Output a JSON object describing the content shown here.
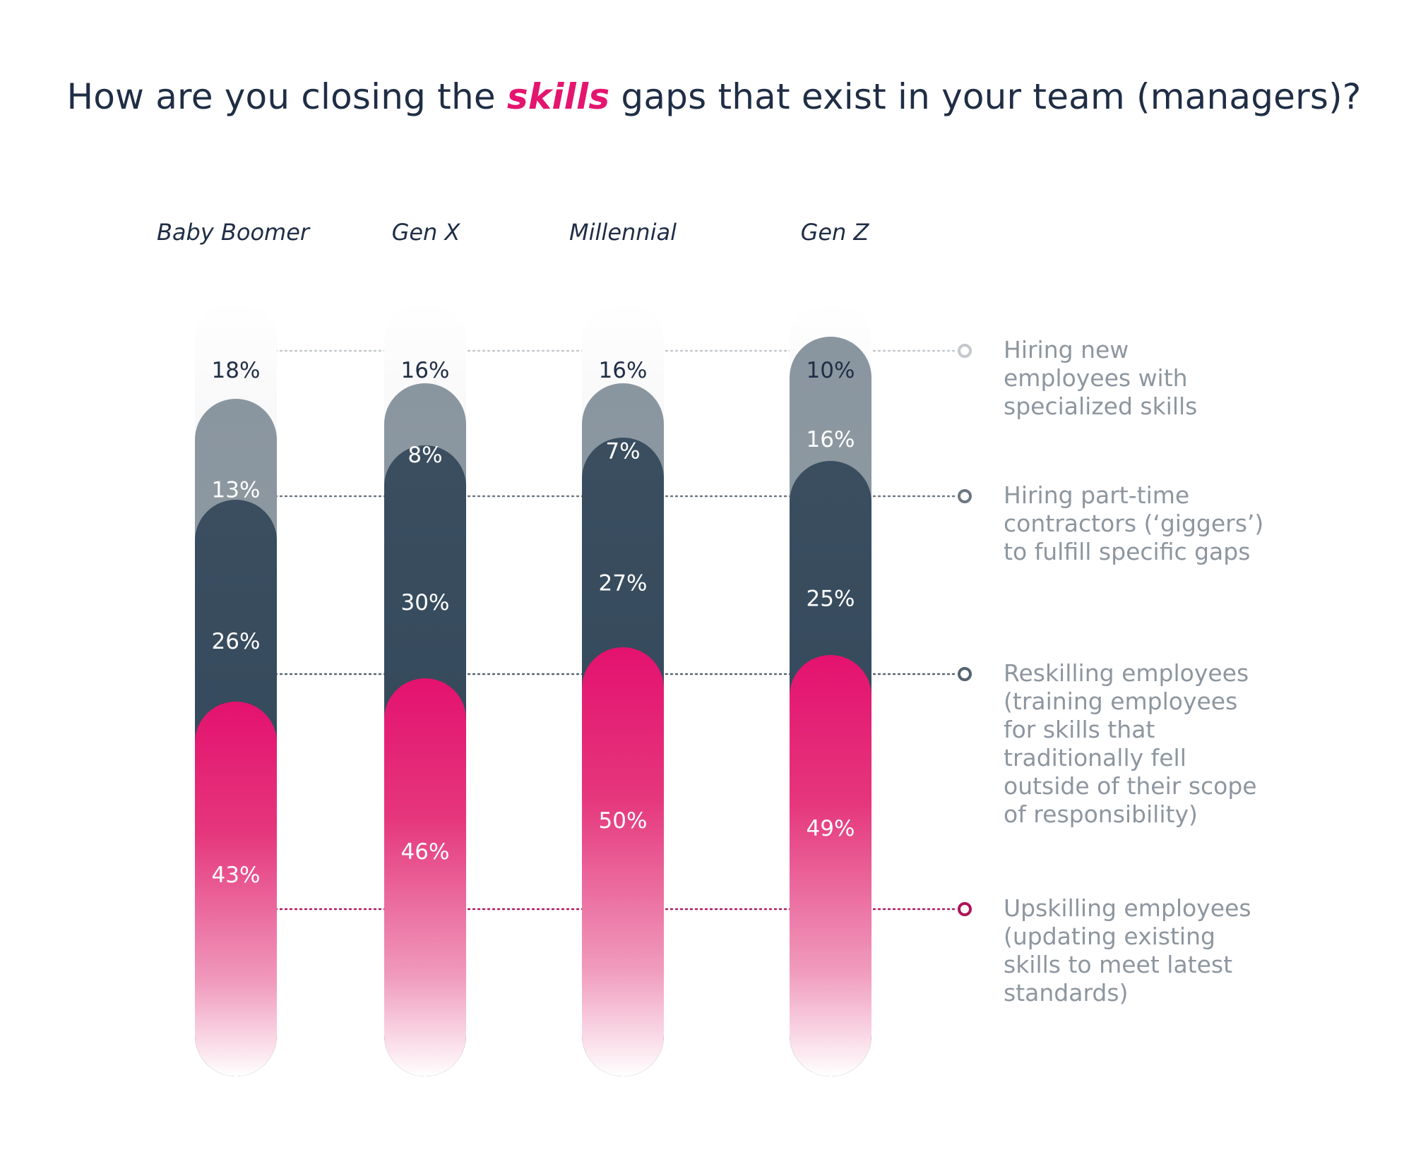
{
  "chart_data": {
    "type": "bar",
    "title": {
      "before": "How are you closing the ",
      "emphasis": "skills",
      "after": " gaps that exist in your team (managers)?"
    },
    "categories": [
      "Baby Boomer",
      "Gen X",
      "Millennial",
      "Gen Z"
    ],
    "series": [
      {
        "name": "Hiring new employees with specialized skills",
        "legend_lines": [
          "Hiring new",
          "employees with",
          "specialized skills"
        ],
        "values": [
          18,
          16,
          16,
          10
        ],
        "labels": [
          "18%",
          "16%",
          "16%",
          "10%"
        ],
        "color": "#c9ccd1"
      },
      {
        "name": "Hiring part-time contractors (‘giggers’) to fulfill specific gaps",
        "legend_lines": [
          "Hiring part-time",
          "contractors (‘giggers’)",
          "to fulfill specific gaps"
        ],
        "values": [
          13,
          8,
          7,
          16
        ],
        "labels": [
          "13%",
          "8%",
          "7%",
          "16%"
        ],
        "color": "#8a969f"
      },
      {
        "name": "Reskilling employees (training employees for skills that traditionally fell outside of their scope of responsibility)",
        "legend_lines": [
          "Reskilling employees",
          "(training employees",
          "for skills that",
          "traditionally fell",
          "outside of their scope",
          "of responsibility)"
        ],
        "values": [
          26,
          30,
          27,
          25
        ],
        "labels": [
          "26%",
          "30%",
          "27%",
          "25%"
        ],
        "color": "#34495b"
      },
      {
        "name": "Upskilling employees (updating existing skills to meet latest standards)",
        "legend_lines": [
          "Upskilling employees",
          "(updating existing",
          "skills to meet latest",
          "standards)"
        ],
        "values": [
          43,
          46,
          50,
          49
        ],
        "labels": [
          "43%",
          "46%",
          "50%",
          "49%"
        ],
        "color": "#e4126f"
      }
    ],
    "stacked": true,
    "xlabel": "",
    "ylabel": "",
    "ylim": [
      0,
      100
    ],
    "legend_position": "right"
  }
}
